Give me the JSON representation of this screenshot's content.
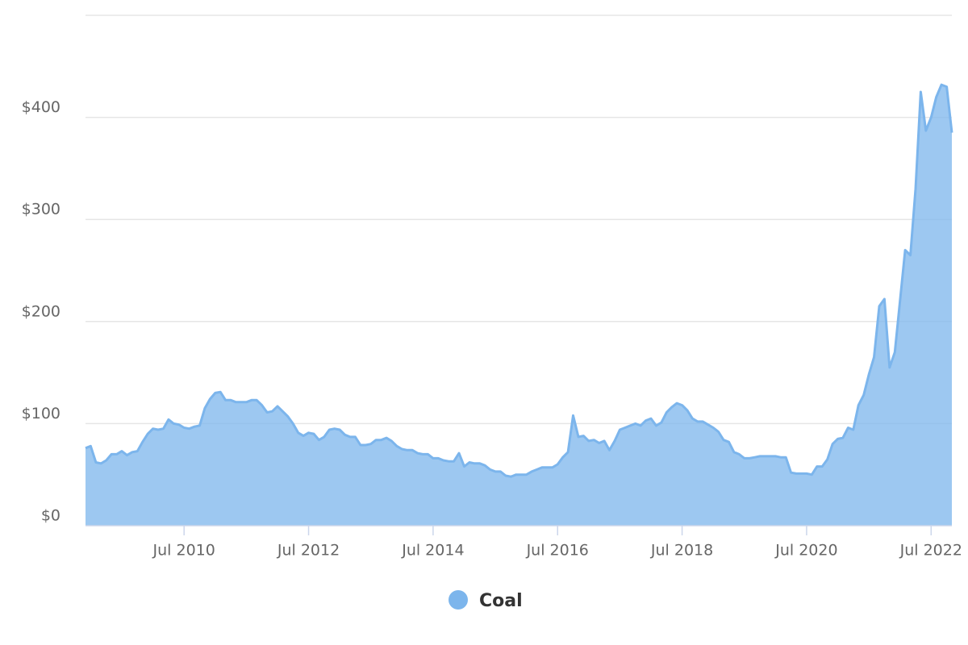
{
  "chart_data": {
    "type": "area",
    "x": [
      "2008-12",
      "2009-01",
      "2009-02",
      "2009-03",
      "2009-04",
      "2009-05",
      "2009-06",
      "2009-07",
      "2009-08",
      "2009-09",
      "2009-10",
      "2009-11",
      "2009-12",
      "2010-01",
      "2010-02",
      "2010-03",
      "2010-04",
      "2010-05",
      "2010-06",
      "2010-07",
      "2010-08",
      "2010-09",
      "2010-10",
      "2010-11",
      "2010-12",
      "2011-01",
      "2011-02",
      "2011-03",
      "2011-04",
      "2011-05",
      "2011-06",
      "2011-07",
      "2011-08",
      "2011-09",
      "2011-10",
      "2011-11",
      "2011-12",
      "2012-01",
      "2012-02",
      "2012-03",
      "2012-04",
      "2012-05",
      "2012-06",
      "2012-07",
      "2012-08",
      "2012-09",
      "2012-10",
      "2012-11",
      "2012-12",
      "2013-01",
      "2013-02",
      "2013-03",
      "2013-04",
      "2013-05",
      "2013-06",
      "2013-07",
      "2013-08",
      "2013-09",
      "2013-10",
      "2013-11",
      "2013-12",
      "2014-01",
      "2014-02",
      "2014-03",
      "2014-04",
      "2014-05",
      "2014-06",
      "2014-07",
      "2014-08",
      "2014-09",
      "2014-10",
      "2014-11",
      "2014-12",
      "2015-01",
      "2015-02",
      "2015-03",
      "2015-04",
      "2015-05",
      "2015-06",
      "2015-07",
      "2015-08",
      "2015-09",
      "2015-10",
      "2015-11",
      "2015-12",
      "2016-01",
      "2016-02",
      "2016-03",
      "2016-04",
      "2016-05",
      "2016-06",
      "2016-07",
      "2016-08",
      "2016-09",
      "2016-10",
      "2016-11",
      "2016-12",
      "2017-01",
      "2017-02",
      "2017-03",
      "2017-04",
      "2017-05",
      "2017-06",
      "2017-07",
      "2017-08",
      "2017-09",
      "2017-10",
      "2017-11",
      "2017-12",
      "2018-01",
      "2018-02",
      "2018-03",
      "2018-04",
      "2018-05",
      "2018-06",
      "2018-07",
      "2018-08",
      "2018-09",
      "2018-10",
      "2018-11",
      "2018-12",
      "2019-01",
      "2019-02",
      "2019-03",
      "2019-04",
      "2019-05",
      "2019-06",
      "2019-07",
      "2019-08",
      "2019-09",
      "2019-10",
      "2019-11",
      "2019-12",
      "2020-01",
      "2020-02",
      "2020-03",
      "2020-04",
      "2020-05",
      "2020-06",
      "2020-07",
      "2020-08",
      "2020-09",
      "2020-10",
      "2020-11",
      "2020-12",
      "2021-01",
      "2021-02",
      "2021-03",
      "2021-04",
      "2021-05",
      "2021-06",
      "2021-07",
      "2021-08",
      "2021-09",
      "2021-10",
      "2021-11",
      "2021-12",
      "2022-01",
      "2022-02",
      "2022-03",
      "2022-04",
      "2022-05",
      "2022-06",
      "2022-07",
      "2022-08",
      "2022-09",
      "2022-10",
      "2022-11"
    ],
    "series": [
      {
        "name": "Coal",
        "color": "#7cb5ec",
        "values": [
          76,
          78,
          62,
          61,
          64,
          70,
          70,
          73,
          69,
          72,
          73,
          82,
          90,
          95,
          94,
          95,
          104,
          100,
          99,
          96,
          95,
          97,
          98,
          115,
          124,
          130,
          131,
          123,
          123,
          121,
          121,
          121,
          123,
          123,
          118,
          111,
          112,
          117,
          112,
          107,
          100,
          91,
          88,
          91,
          90,
          84,
          87,
          94,
          95,
          94,
          89,
          87,
          87,
          79,
          79,
          80,
          84,
          84,
          86,
          83,
          78,
          75,
          74,
          74,
          71,
          70,
          70,
          66,
          66,
          64,
          63,
          63,
          71,
          58,
          62,
          61,
          61,
          59,
          55,
          53,
          53,
          49,
          48,
          50,
          50,
          50,
          53,
          55,
          57,
          57,
          57,
          60,
          67,
          72,
          108,
          87,
          88,
          83,
          84,
          81,
          83,
          74,
          83,
          94,
          96,
          98,
          100,
          98,
          103,
          105,
          98,
          101,
          111,
          116,
          120,
          118,
          113,
          105,
          102,
          102,
          99,
          96,
          92,
          84,
          82,
          72,
          70,
          66,
          66,
          67,
          68,
          68,
          68,
          68,
          67,
          67,
          52,
          51,
          51,
          51,
          50,
          58,
          58,
          65,
          80,
          85,
          86,
          96,
          94,
          118,
          128,
          148,
          165,
          215,
          222,
          155,
          170,
          220,
          270,
          265,
          330,
          425,
          387,
          400,
          420,
          432,
          430,
          385
        ]
      }
    ],
    "xlim": [
      "2008-12",
      "2022-11"
    ],
    "xticks": [
      {
        "value": "2010-07",
        "label": "Jul 2010"
      },
      {
        "value": "2012-07",
        "label": "Jul 2012"
      },
      {
        "value": "2014-07",
        "label": "Jul 2014"
      },
      {
        "value": "2016-07",
        "label": "Jul 2016"
      },
      {
        "value": "2018-07",
        "label": "Jul 2018"
      },
      {
        "value": "2020-07",
        "label": "Jul 2020"
      },
      {
        "value": "2022-07",
        "label": "Jul 2022"
      }
    ],
    "ylim": [
      0,
      500
    ],
    "yticks": [
      {
        "value": 0,
        "label": "$0"
      },
      {
        "value": 100,
        "label": "$100"
      },
      {
        "value": 200,
        "label": "$200"
      },
      {
        "value": 300,
        "label": "$300"
      },
      {
        "value": 400,
        "label": "$400"
      }
    ],
    "grid": true
  }
}
